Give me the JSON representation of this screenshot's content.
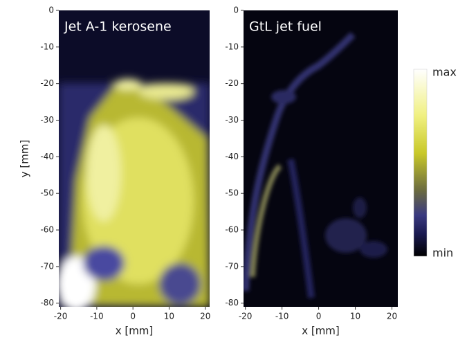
{
  "chart_data": [
    {
      "type": "image",
      "title": "Jet A-1 kerosene",
      "xlabel": "x [mm]",
      "ylabel": "y [mm]",
      "xlim": [
        -20.5,
        21.2
      ],
      "ylim": [
        -81,
        0
      ],
      "xticks": [
        -20,
        -10,
        0,
        10,
        20
      ],
      "yticks": [
        0,
        -10,
        -20,
        -30,
        -40,
        -50,
        -60,
        -70,
        -80
      ]
    },
    {
      "type": "image",
      "title": "GtL jet fuel",
      "xlabel": "x [mm]",
      "xlim": [
        -20.5,
        21.6
      ],
      "ylim": [
        -81,
        0
      ],
      "xticks": [
        -20,
        -10,
        0,
        10,
        20
      ],
      "yticks": [
        0,
        -10,
        -20,
        -30,
        -40,
        -50,
        -60,
        -70,
        -80
      ]
    }
  ],
  "colorbar": {
    "max_label": "max",
    "min_label": "min"
  }
}
